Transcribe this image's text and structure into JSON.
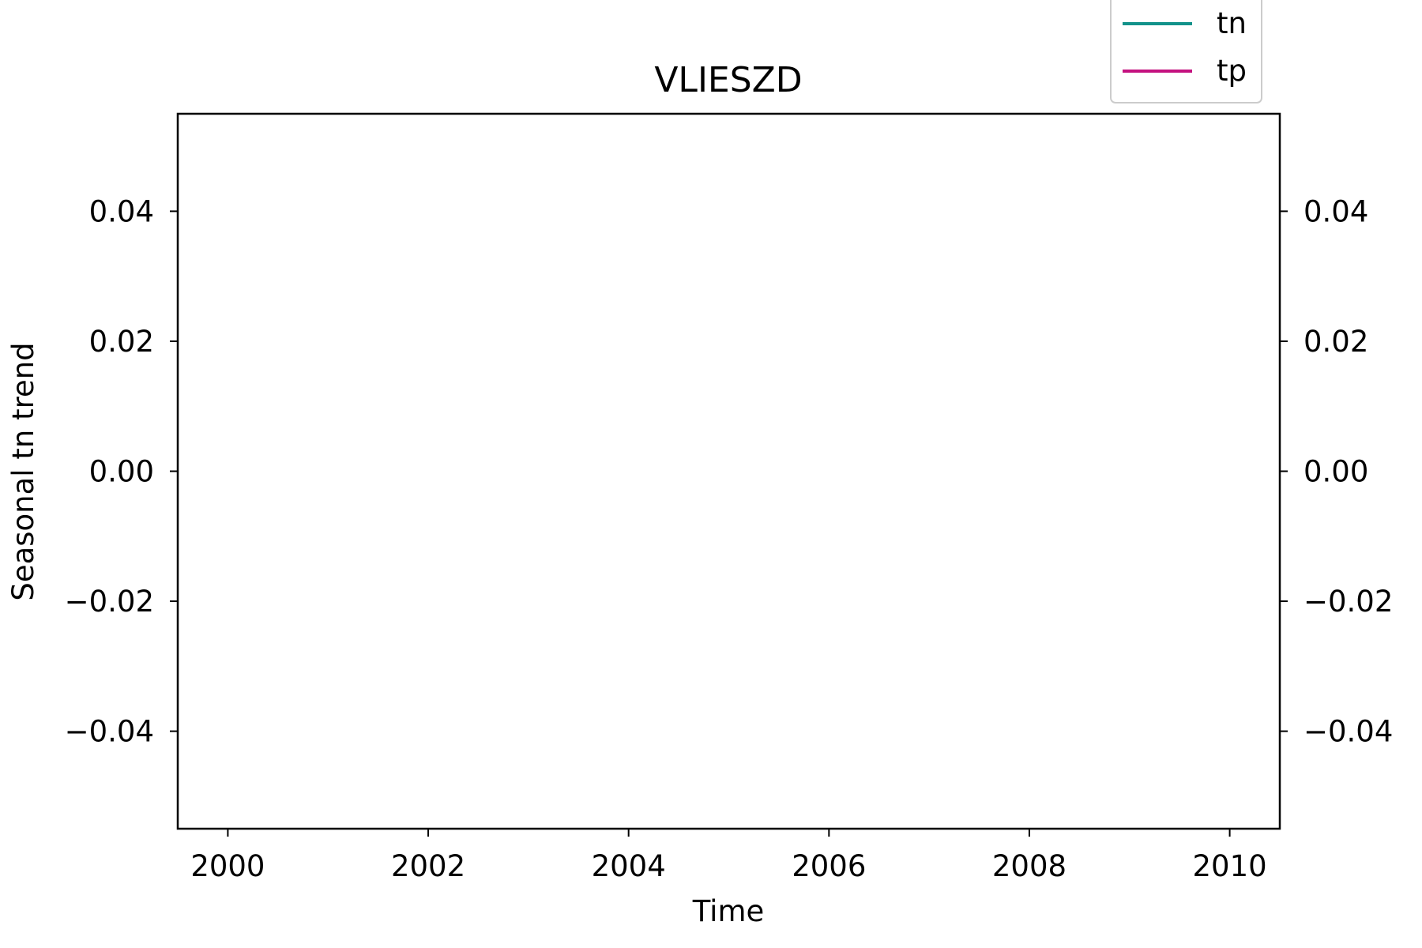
{
  "chart_data": {
    "type": "line",
    "title": "VLIESZD",
    "xlabel": "Time",
    "ylabel": "Seasonal tn trend",
    "y2label": "",
    "xlim": [
      1999.5,
      2010.5
    ],
    "ylim": [
      -0.055,
      0.055
    ],
    "y2lim": [
      -0.055,
      0.055
    ],
    "x_ticks": [
      {
        "value": 2000,
        "label": "2000"
      },
      {
        "value": 2002,
        "label": "2002"
      },
      {
        "value": 2004,
        "label": "2004"
      },
      {
        "value": 2006,
        "label": "2006"
      },
      {
        "value": 2008,
        "label": "2008"
      },
      {
        "value": 2010,
        "label": "2010"
      }
    ],
    "y_ticks": [
      {
        "value": 0.04,
        "label": "0.04"
      },
      {
        "value": 0.02,
        "label": "0.02"
      },
      {
        "value": 0.0,
        "label": "0.00"
      },
      {
        "value": -0.02,
        "label": "−0.02"
      },
      {
        "value": -0.04,
        "label": "−0.04"
      }
    ],
    "y2_ticks": [
      {
        "value": 0.04,
        "label": "0.04"
      },
      {
        "value": 0.02,
        "label": "0.02"
      },
      {
        "value": 0.0,
        "label": "0.00"
      },
      {
        "value": -0.02,
        "label": "−0.02"
      },
      {
        "value": -0.04,
        "label": "−0.04"
      }
    ],
    "grid": false,
    "legend_position": "top-right, above plot",
    "series": [
      {
        "name": "tn",
        "color": "#12928a",
        "values": []
      },
      {
        "name": "tp",
        "color": "#c4117f",
        "values": []
      }
    ]
  }
}
